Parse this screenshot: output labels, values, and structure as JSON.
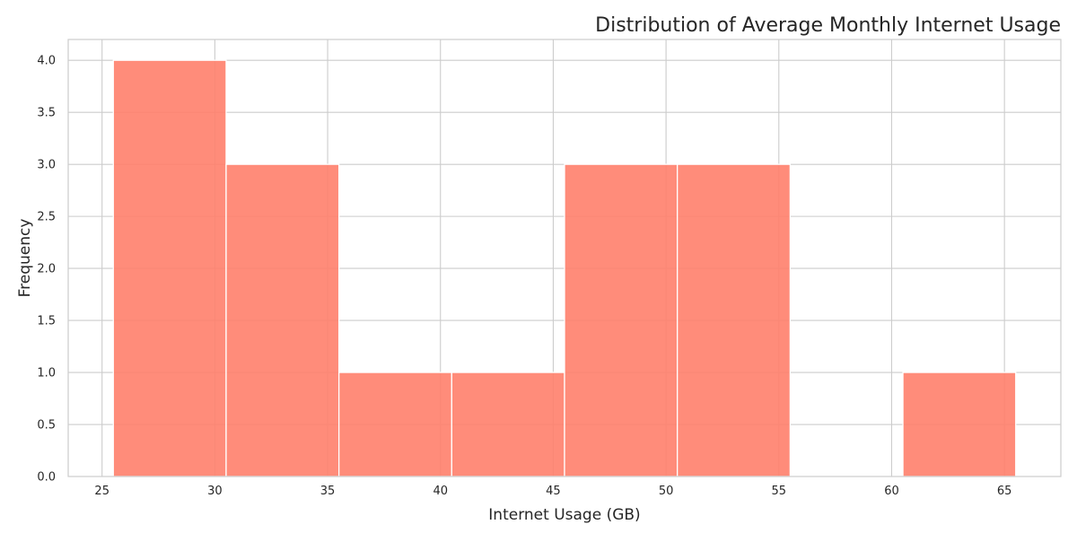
{
  "chart_data": {
    "type": "bar",
    "title": "Distribution of Average Monthly Internet Usage",
    "xlabel": "Internet Usage (GB)",
    "ylabel": "Frequency",
    "bins": [
      {
        "start": 25.5,
        "end": 30.5,
        "count": 4
      },
      {
        "start": 30.5,
        "end": 35.5,
        "count": 3
      },
      {
        "start": 35.5,
        "end": 40.5,
        "count": 1
      },
      {
        "start": 40.5,
        "end": 45.5,
        "count": 1
      },
      {
        "start": 45.5,
        "end": 50.5,
        "count": 3
      },
      {
        "start": 50.5,
        "end": 55.5,
        "count": 3
      },
      {
        "start": 55.5,
        "end": 60.5,
        "count": 0
      },
      {
        "start": 60.5,
        "end": 65.5,
        "count": 1
      }
    ],
    "xlim": [
      23.5,
      67.5
    ],
    "ylim": [
      0,
      4.2
    ],
    "xticks": [
      25,
      30,
      35,
      40,
      45,
      50,
      55,
      60,
      65
    ],
    "yticks": [
      0,
      0.5,
      1,
      1.5,
      2,
      2.5,
      3,
      3.5,
      4
    ],
    "ytick_labels": [
      "0.0",
      "0.5",
      "1.0",
      "1.5",
      "2.0",
      "2.5",
      "3.0",
      "3.5",
      "4.0"
    ],
    "grid": true,
    "bar_color": "#ff7f6b",
    "bar_alpha": 0.9
  }
}
